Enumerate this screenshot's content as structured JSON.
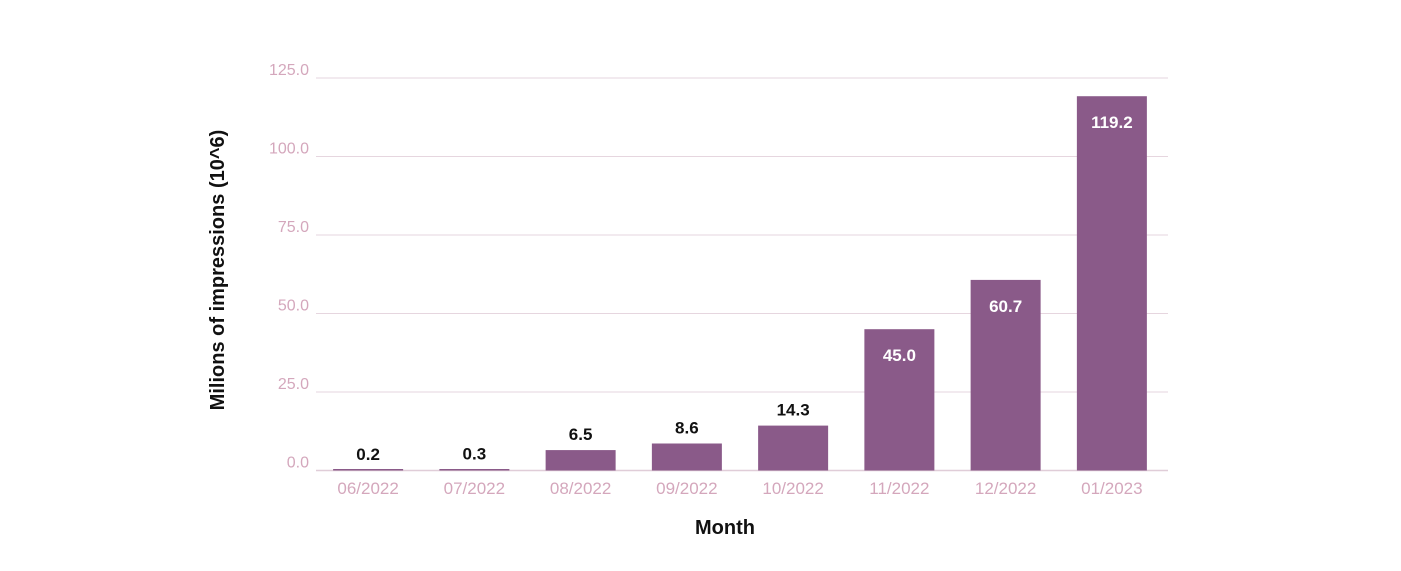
{
  "chart_data": {
    "type": "bar",
    "xlabel": "Month",
    "ylabel": "Milions of impressions (10^6)",
    "categories": [
      "06/2022",
      "07/2022",
      "08/2022",
      "09/2022",
      "10/2022",
      "11/2022",
      "12/2022",
      "01/2023"
    ],
    "values": [
      0.2,
      0.3,
      6.5,
      8.6,
      14.3,
      45.0,
      60.7,
      119.2
    ],
    "data_labels": [
      "0.2",
      "0.3",
      "6.5",
      "8.6",
      "14.3",
      "45.0",
      "60.7",
      "119.2"
    ],
    "ylim": [
      0,
      125
    ],
    "yticks": [
      "0.0",
      "25.0",
      "50.0",
      "75.0",
      "100.0",
      "125.0"
    ],
    "grid": true,
    "legend": "none",
    "colors": {
      "bar": "#8a5a89",
      "tick_text": "#d4a7bc",
      "grid": "#e6d6df"
    }
  }
}
